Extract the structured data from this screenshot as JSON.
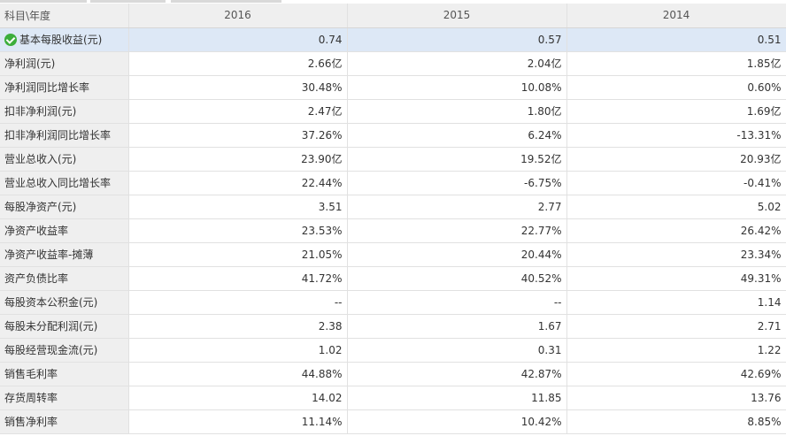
{
  "table": {
    "header": {
      "label": "科目\\年度",
      "years": [
        "2016",
        "2015",
        "2014"
      ]
    },
    "rows": [
      {
        "label": "基本每股收益(元)",
        "values": [
          "0.74",
          "0.57",
          "0.51"
        ],
        "selected": true
      },
      {
        "label": "净利润(元)",
        "values": [
          "2.66亿",
          "2.04亿",
          "1.85亿"
        ]
      },
      {
        "label": "净利润同比增长率",
        "values": [
          "30.48%",
          "10.08%",
          "0.60%"
        ]
      },
      {
        "label": "扣非净利润(元)",
        "values": [
          "2.47亿",
          "1.80亿",
          "1.69亿"
        ]
      },
      {
        "label": "扣非净利润同比增长率",
        "values": [
          "37.26%",
          "6.24%",
          "-13.31%"
        ]
      },
      {
        "label": "营业总收入(元)",
        "values": [
          "23.90亿",
          "19.52亿",
          "20.93亿"
        ]
      },
      {
        "label": "营业总收入同比增长率",
        "values": [
          "22.44%",
          "-6.75%",
          "-0.41%"
        ]
      },
      {
        "label": "每股净资产(元)",
        "values": [
          "3.51",
          "2.77",
          "5.02"
        ]
      },
      {
        "label": "净资产收益率",
        "values": [
          "23.53%",
          "22.77%",
          "26.42%"
        ]
      },
      {
        "label": "净资产收益率-摊薄",
        "values": [
          "21.05%",
          "20.44%",
          "23.34%"
        ]
      },
      {
        "label": "资产负债比率",
        "values": [
          "41.72%",
          "40.52%",
          "49.31%"
        ]
      },
      {
        "label": "每股资本公积金(元)",
        "values": [
          "--",
          "--",
          "1.14"
        ]
      },
      {
        "label": "每股未分配利润(元)",
        "values": [
          "2.38",
          "1.67",
          "2.71"
        ]
      },
      {
        "label": "每股经营现金流(元)",
        "values": [
          "1.02",
          "0.31",
          "1.22"
        ]
      },
      {
        "label": "销售毛利率",
        "values": [
          "44.88%",
          "42.87%",
          "42.69%"
        ]
      },
      {
        "label": "存货周转率",
        "values": [
          "14.02",
          "11.85",
          "13.76"
        ]
      },
      {
        "label": "销售净利率",
        "values": [
          "11.14%",
          "10.42%",
          "8.85%"
        ]
      }
    ]
  },
  "colors": {
    "header_bg": "#efefef",
    "label_bg": "#efefef",
    "selected_bg": "#dde8f6",
    "grid_line": "#e1e1e1",
    "check_icon": "#3cae3c"
  },
  "icons": {
    "selected_row_icon": "check-circle-icon"
  }
}
